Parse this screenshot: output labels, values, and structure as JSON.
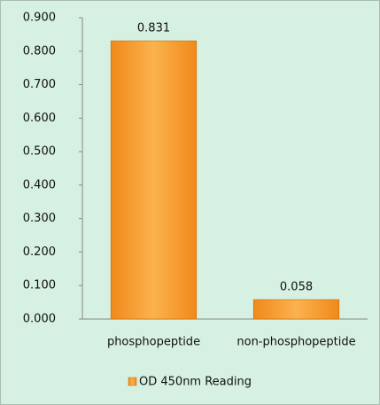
{
  "chart_data": {
    "type": "bar",
    "categories": [
      "phosphopeptide",
      "non-phosphopeptide"
    ],
    "series": [
      {
        "name": "OD 450nm Reading",
        "color": "#f0891a",
        "values": [
          0.831,
          0.058
        ]
      }
    ],
    "ylim": [
      0,
      0.9
    ],
    "yticks": [
      {
        "value": 0,
        "label": "0.000"
      },
      {
        "value": 0.1,
        "label": "0.100"
      },
      {
        "value": 0.2,
        "label": "0.200"
      },
      {
        "value": 0.3,
        "label": "0.300"
      },
      {
        "value": 0.4,
        "label": "0.400"
      },
      {
        "value": 0.5,
        "label": "0.500"
      },
      {
        "value": 0.6,
        "label": "0.600"
      },
      {
        "value": 0.7,
        "label": "0.700"
      },
      {
        "value": 0.8,
        "label": "0.800"
      },
      {
        "value": 0.9,
        "label": "0.900"
      }
    ],
    "grid": false,
    "legend": "bottom"
  }
}
